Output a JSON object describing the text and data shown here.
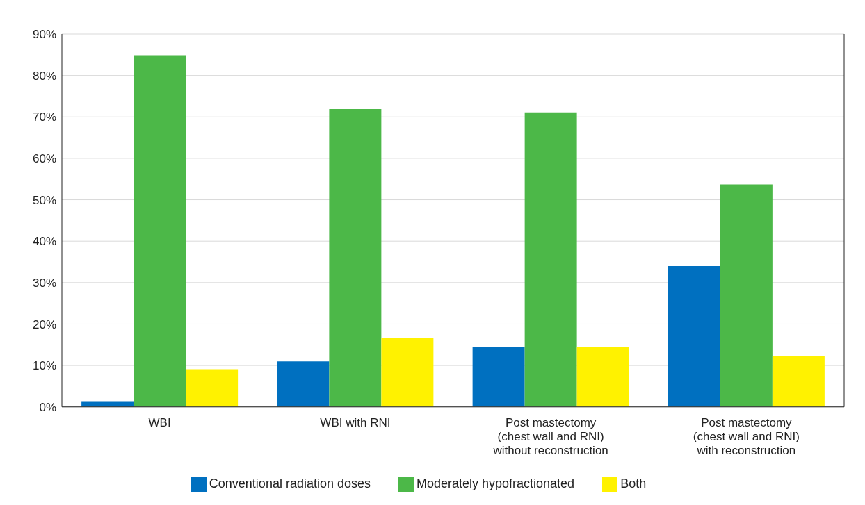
{
  "chart_data": {
    "type": "bar",
    "categories": [
      "WBI",
      "WBI with RNI",
      "Post mastectomy\n(chest wall and RNI)\nwithout reconstruction",
      "Post mastectomy\n(chest wall and RNI)\nwith reconstruction"
    ],
    "series": [
      {
        "name": "Conventional radiation doses",
        "color": "#0070c0",
        "values": [
          1.2,
          11,
          14.4,
          34
        ]
      },
      {
        "name": "Moderately hypofractionated",
        "color": "#4cb848",
        "values": [
          84.9,
          71.9,
          71.1,
          53.7
        ]
      },
      {
        "name": "Both",
        "color": "#fff200",
        "values": [
          9.1,
          16.7,
          14.4,
          12.3
        ]
      }
    ],
    "ylim": [
      0,
      90
    ],
    "yticks": [
      {
        "value": 0,
        "label": "0%"
      },
      {
        "value": 10,
        "label": "10%"
      },
      {
        "value": 20,
        "label": "20%"
      },
      {
        "value": 30,
        "label": "30%"
      },
      {
        "value": 40,
        "label": "40%"
      },
      {
        "value": 50,
        "label": "50%"
      },
      {
        "value": 60,
        "label": "60%"
      },
      {
        "value": 70,
        "label": "70%"
      },
      {
        "value": 80,
        "label": "80%"
      },
      {
        "value": 90,
        "label": "90%"
      }
    ],
    "grid": "y",
    "legend": "bottom"
  }
}
